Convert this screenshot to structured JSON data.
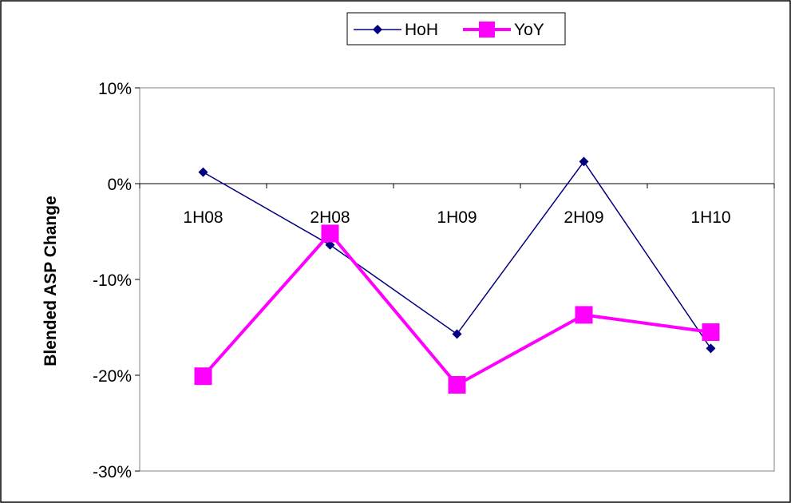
{
  "chart_data": {
    "type": "line",
    "categories": [
      "1H08",
      "2H08",
      "1H09",
      "2H09",
      "1H10"
    ],
    "series": [
      {
        "name": "HoH",
        "values": [
          1.2,
          -6.4,
          -15.7,
          2.3,
          -17.2
        ],
        "color": "#000080",
        "marker": "diamond"
      },
      {
        "name": "YoY",
        "values": [
          -20.1,
          -5.2,
          -21.0,
          -13.7,
          -15.5
        ],
        "color": "#FF00FF",
        "marker": "square"
      }
    ],
    "ylabel": "Blended ASP Change",
    "ylim": [
      -30,
      10
    ],
    "yticks": [
      10,
      0,
      -10,
      -20,
      -30
    ],
    "ytick_labels": [
      "10%",
      "0%",
      "-10%",
      "-20%",
      "-30%"
    ],
    "legend_position": "top-center",
    "grid": false
  }
}
